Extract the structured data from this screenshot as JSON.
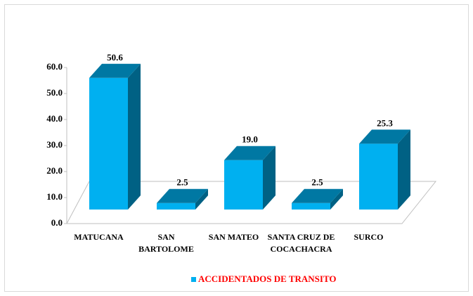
{
  "chart_data": {
    "type": "bar3d",
    "categories": [
      "MATUCANA",
      "SAN BARTOLOME",
      "SAN MATEO",
      "SANTA CRUZ DE COCACHACRA",
      "SURCO"
    ],
    "series": [
      {
        "name": "ACCIDENTADOS DE TRANSITO",
        "color": "#00b0f0",
        "values": [
          50.6,
          2.5,
          19.0,
          2.5,
          25.3
        ],
        "value_labels": [
          "50.6",
          "2.5",
          "19.0",
          "2.5",
          "25.3"
        ]
      }
    ],
    "ylim": [
      0,
      60
    ],
    "yticks": [
      {
        "value": 0,
        "label": "0.0"
      },
      {
        "value": 10,
        "label": "10.0"
      },
      {
        "value": 20,
        "label": "20.0"
      },
      {
        "value": 30,
        "label": "30.0"
      },
      {
        "value": 40,
        "label": "40.0"
      },
      {
        "value": 50,
        "label": "50.0"
      },
      {
        "value": 60,
        "label": "60.0"
      }
    ],
    "legend": "bottom",
    "grid": false
  }
}
